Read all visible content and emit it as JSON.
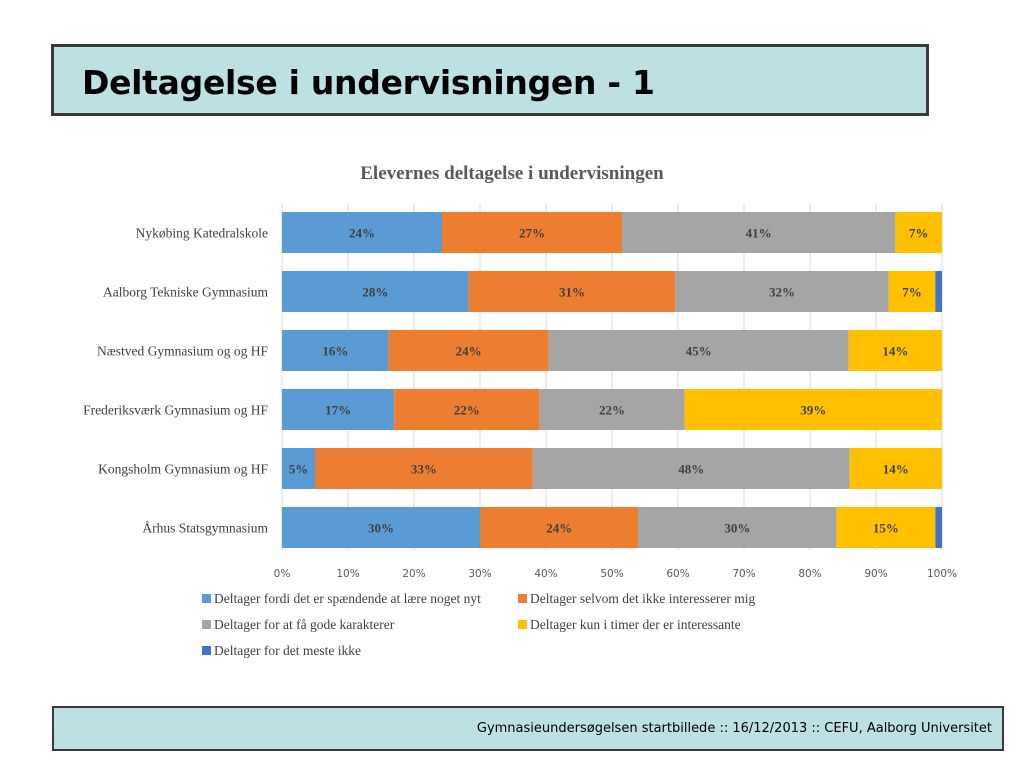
{
  "slide": {
    "title": "Deltagelse i undervisningen - 1",
    "footer": "Gymnasieundersøgelsen startbillede ::  16/12/2013  ::  CEFU, Aalborg Universitet"
  },
  "chart_data": {
    "type": "bar",
    "orientation": "horizontal",
    "stacked": "percent",
    "title": "Elevernes deltagelse i undervisningen",
    "categories": [
      "Nykøbing Katedralskole",
      "Aalborg Tekniske Gymnasium",
      "Næstved Gymnasium og og HF",
      "Frederiksværk Gymnasium og HF",
      "Kongsholm Gymnasium og HF",
      "Århus Statsgymnasium"
    ],
    "series": [
      {
        "name": "Deltager fordi det er spændende at lære noget nyt",
        "color": "#5b9bd5",
        "values": [
          24,
          28,
          16,
          17,
          5,
          30
        ],
        "labels": [
          "24%",
          "28%",
          "16%",
          "17%",
          "5%",
          "30%"
        ]
      },
      {
        "name": "Deltager selvom det ikke interesserer mig",
        "color": "#ed7d31",
        "values": [
          27,
          31,
          24,
          22,
          33,
          24
        ],
        "labels": [
          "27%",
          "31%",
          "24%",
          "22%",
          "33%",
          "24%"
        ]
      },
      {
        "name": "Deltager for at få gode karakterer",
        "color": "#a5a5a5",
        "values": [
          41,
          32,
          45,
          22,
          48,
          30
        ],
        "labels": [
          "41%",
          "32%",
          "45%",
          "22%",
          "48%",
          "30%"
        ]
      },
      {
        "name": "Deltager kun i timer der er interessante",
        "color": "#ffc000",
        "values": [
          7,
          7,
          14,
          39,
          14,
          15
        ],
        "labels": [
          "7%",
          "7%",
          "14%",
          "39%",
          "14%",
          "15%"
        ]
      },
      {
        "name": "Deltager for det meste ikke",
        "color": "#4472c4",
        "values": [
          0,
          1,
          0,
          0,
          0,
          1
        ],
        "labels": [
          "",
          "",
          "",
          "",
          "",
          ""
        ]
      }
    ],
    "x_ticks": [
      "0%",
      "10%",
      "20%",
      "30%",
      "40%",
      "50%",
      "60%",
      "70%",
      "80%",
      "90%",
      "100%"
    ],
    "xlim": [
      0,
      100
    ],
    "grid": true,
    "legend_position": "bottom"
  }
}
